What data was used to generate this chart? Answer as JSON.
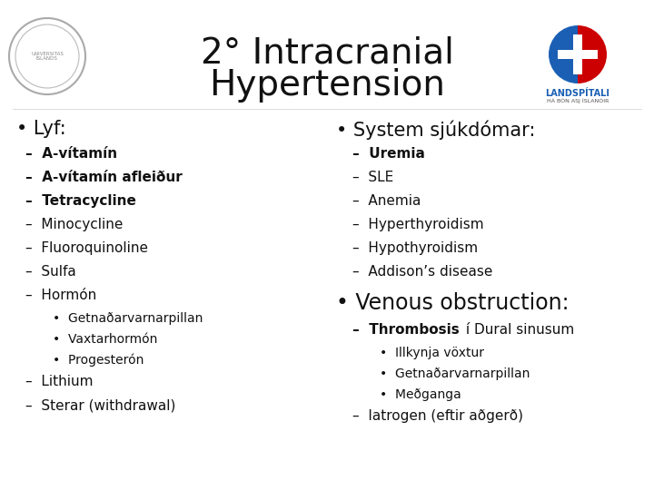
{
  "title_line1": "2° Intracranial",
  "title_line2": "Hypertension",
  "bg_color": "#ffffff",
  "title_color": "#111111",
  "text_color": "#111111",
  "left_header": "• Lyf:",
  "left_items": [
    {
      "level": 1,
      "text": "A-vítamín",
      "bold": true
    },
    {
      "level": 1,
      "text": "A-vítamín afleiður",
      "bold": true
    },
    {
      "level": 1,
      "text": "Tetracycline",
      "bold": true
    },
    {
      "level": 1,
      "text": "Minocycline",
      "bold": false
    },
    {
      "level": 1,
      "text": "Fluoroquinoline",
      "bold": false
    },
    {
      "level": 1,
      "text": "Sulfa",
      "bold": false
    },
    {
      "level": 1,
      "text": "Hormón",
      "bold": false
    },
    {
      "level": 2,
      "text": "Getnaðarvarnarpillan",
      "bold": false
    },
    {
      "level": 2,
      "text": "Vaxtarhormón",
      "bold": false
    },
    {
      "level": 2,
      "text": "Progesterón",
      "bold": false
    },
    {
      "level": 1,
      "text": "Lithium",
      "bold": false
    },
    {
      "level": 1,
      "text": "Sterar (withdrawal)",
      "bold": false
    }
  ],
  "right_header1": "• System sjúkdómar:",
  "right_items1": [
    {
      "text": "Uremia",
      "bold": true
    },
    {
      "text": "SLE",
      "bold": false
    },
    {
      "text": "Anemia",
      "bold": false
    },
    {
      "text": "Hyperthyroidism",
      "bold": false
    },
    {
      "text": "Hypothyroidism",
      "bold": false
    },
    {
      "text": "Addison’s disease",
      "bold": false
    }
  ],
  "right_header2": "• Venous obstruction:",
  "right_items2": [
    {
      "level": 1,
      "bold_part": "Thrombosis",
      "normal_part": " í Dural sinusum"
    },
    {
      "level": 2,
      "text": "Illkynja vöxtur",
      "bold": false
    },
    {
      "level": 2,
      "text": "Getnaðarvarnarpillan",
      "bold": false
    },
    {
      "level": 2,
      "text": "Meðganga",
      "bold": false
    },
    {
      "level": 1,
      "text": "Iatrogen (eftir aðgerð)",
      "bold": false
    }
  ],
  "title_fontsize": 28,
  "header_fontsize": 15,
  "item_fontsize": 11,
  "sub_item_fontsize": 10,
  "landspitali_text": "LANDSPÍTALI",
  "landspitali_sub": "HÁ BÓN ASJ ÍSLANÓIR"
}
